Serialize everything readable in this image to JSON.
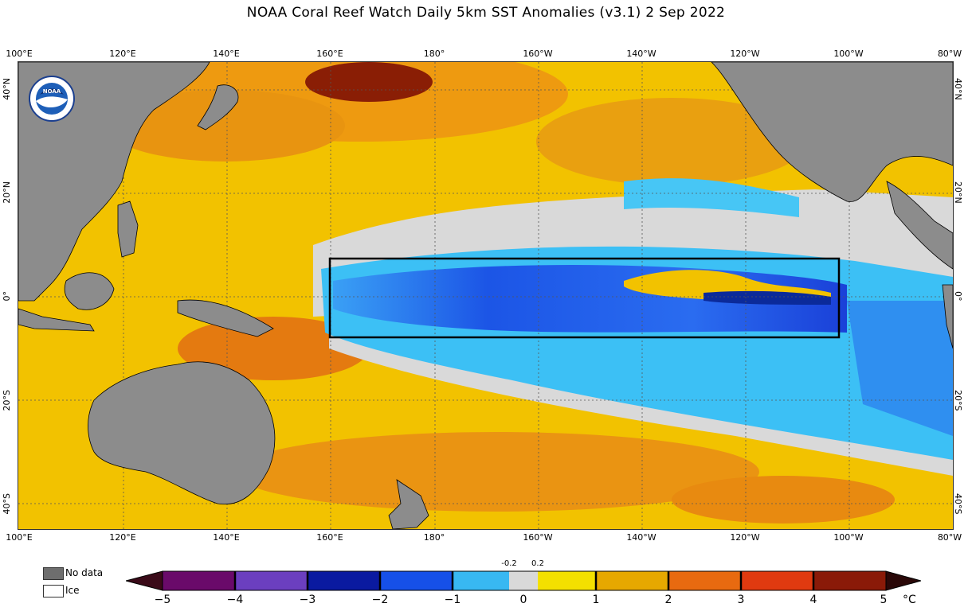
{
  "title": "NOAA Coral Reef Watch Daily 5km SST Anomalies  (v3.1)   2 Sep 2022",
  "logo_text": "NOAA",
  "map": {
    "lon_ticks_top": [
      "100°E",
      "120°E",
      "140°E",
      "160°E",
      "180°",
      "160°W",
      "140°W",
      "120°W",
      "100°W",
      "80°W"
    ],
    "lon_ticks_bottom": [
      "100°E",
      "120°E",
      "140°E",
      "160°E",
      "180°",
      "160°W",
      "140°W",
      "120°W",
      "100°W",
      "80°W"
    ],
    "lat_ticks_left": [
      "40°N",
      "20°N",
      "0°",
      "20°S",
      "40°S"
    ],
    "lat_ticks_right": [
      "40°N",
      "20°N",
      "0°",
      "20°S",
      "40°S"
    ],
    "box_region": "Niño 3.4 / central-eastern equatorial Pacific",
    "colors": {
      "land": "#8c8c8c",
      "ocean_warm": "#f5c400",
      "ocean_hot": "#e07a10",
      "ocean_cool": "#37b8f5",
      "ocean_cold": "#1a4de6",
      "neutral": "#d8d8d8"
    }
  },
  "legend": {
    "no_data_label": "No data",
    "no_data_color": "#6e6e6e",
    "ice_label": "Ice",
    "ice_color": "#ffffff"
  },
  "colorbar": {
    "ticks": [
      "−5",
      "−4",
      "−3",
      "−2",
      "−1",
      "0",
      "1",
      "2",
      "3",
      "4",
      "5"
    ],
    "small_ticks": [
      "-0.2",
      "0.2"
    ],
    "unit": "°C"
  }
}
